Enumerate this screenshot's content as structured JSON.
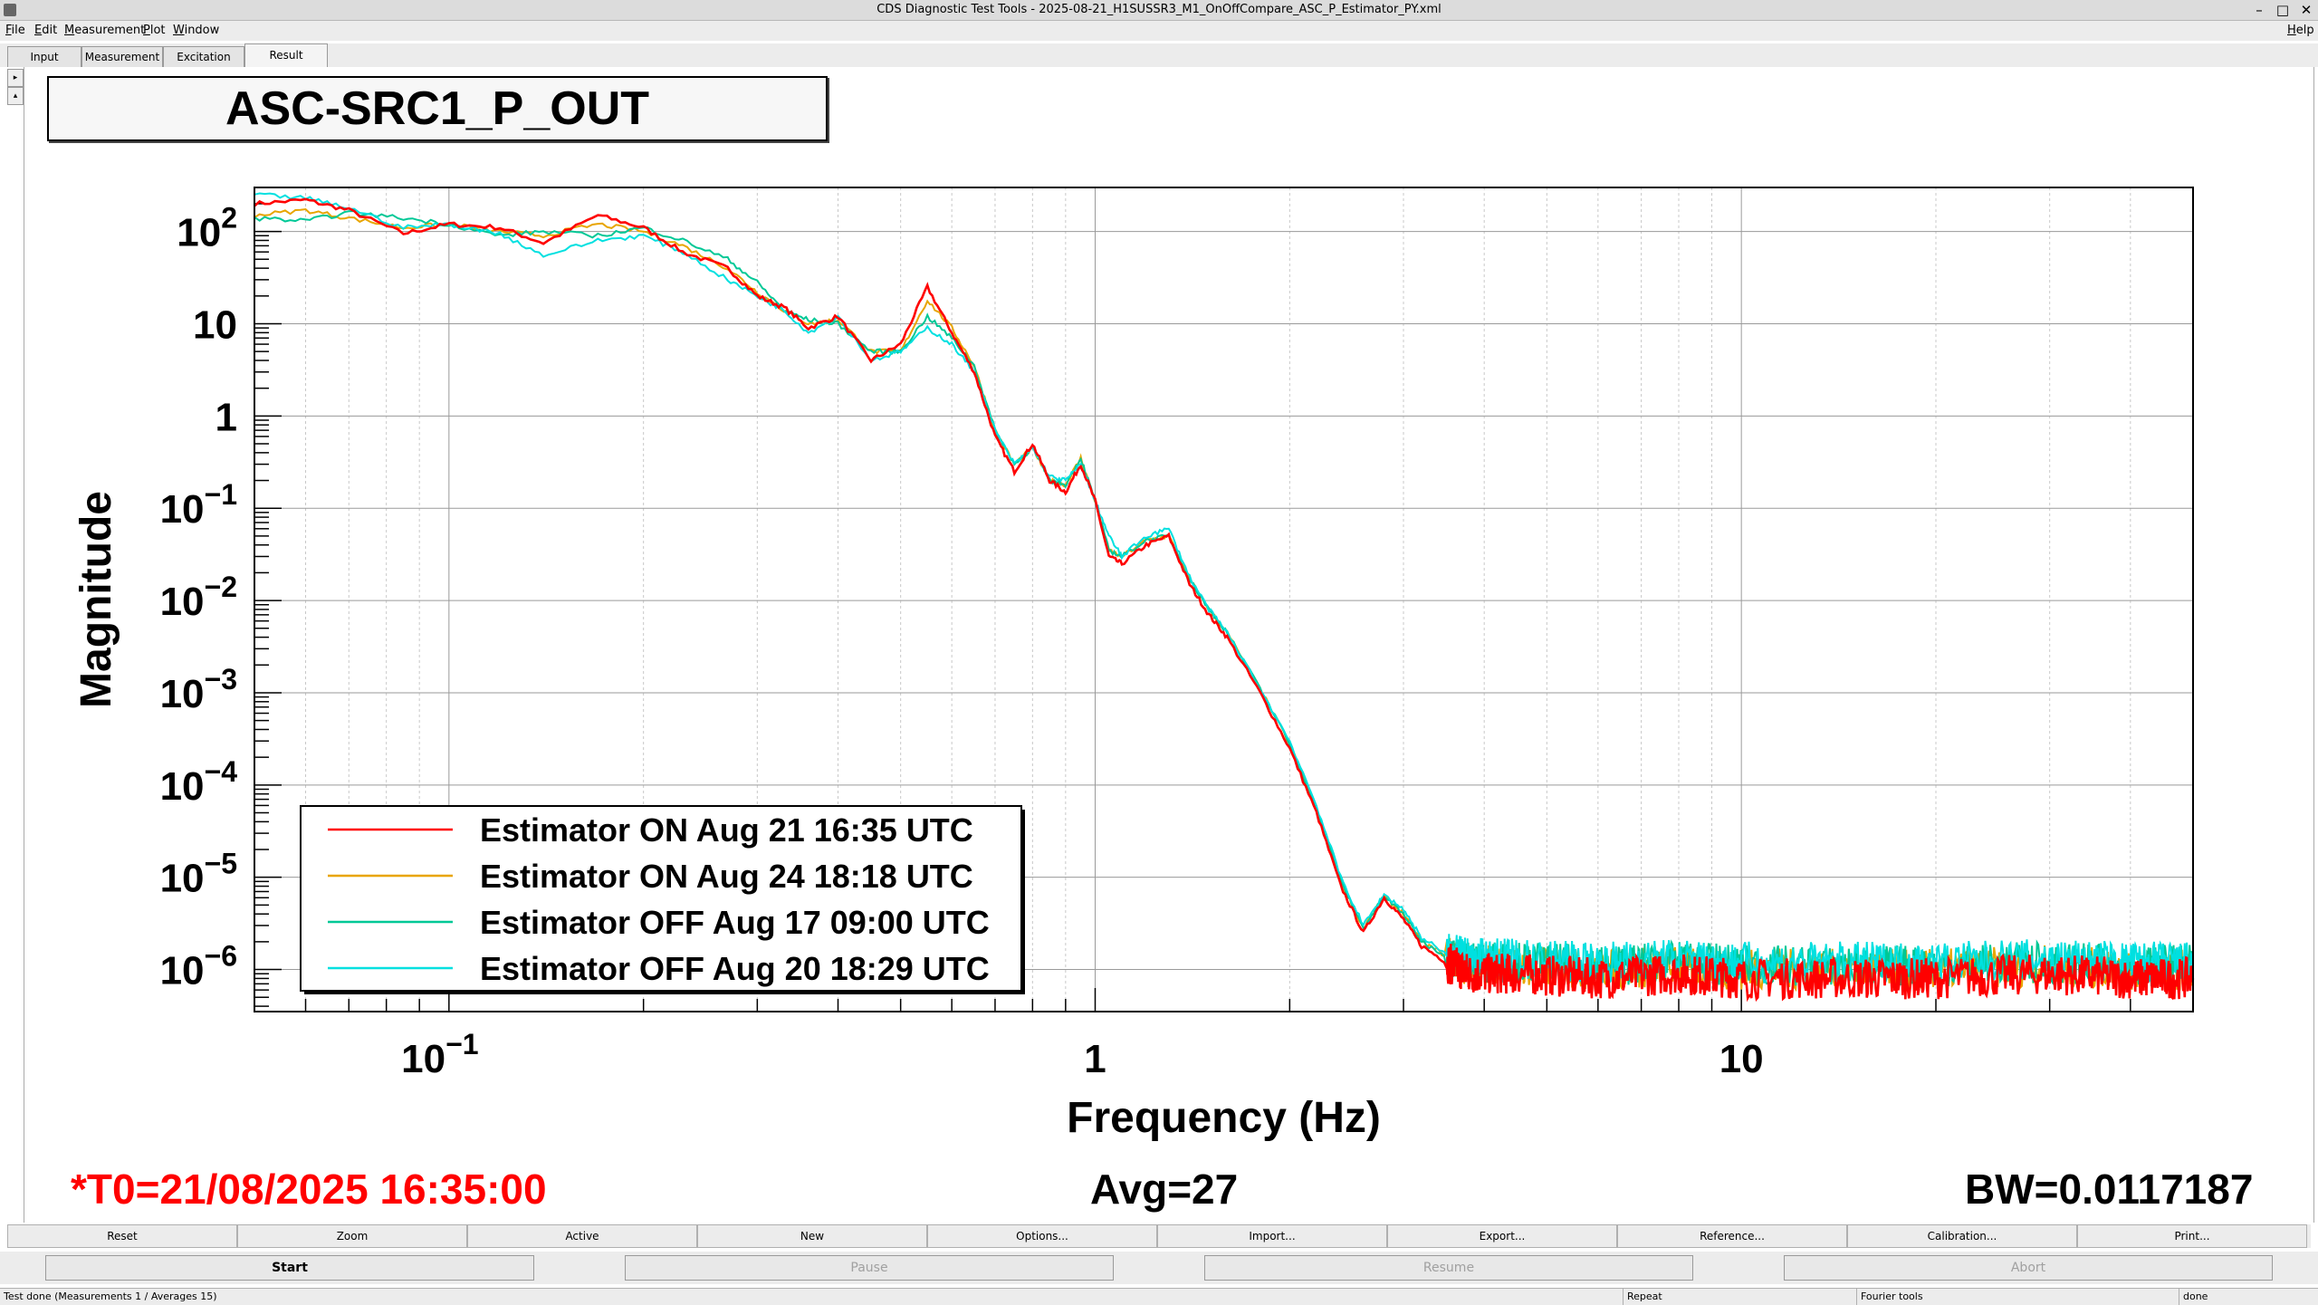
{
  "window": {
    "title": "CDS Diagnostic Test Tools - 2025-08-21_H1SUSSR3_M1_OnOffCompare_ASC_P_Estimator_PY.xml",
    "controls": [
      "–",
      "□",
      "✕"
    ]
  },
  "menu": [
    "File",
    "Edit",
    "Measurement",
    "Plot",
    "Window"
  ],
  "help": "Help",
  "tabs": [
    "Input",
    "Measurement",
    "Excitation",
    "Result"
  ],
  "active_tab": "Result",
  "colors": {
    "series1": "#ff0000",
    "series2": "#e8a500",
    "series3": "#00c896",
    "series4": "#00e0e0"
  },
  "plot": {
    "title": "ASC-SRC1_P_OUT",
    "t0": "*T0=21/08/2025 16:35:00",
    "avg": "Avg=27",
    "bw": "BW=0.0117187"
  },
  "chart_data": {
    "type": "line",
    "title": "ASC-SRC1_P_OUT",
    "xlabel": "Frequency (Hz)",
    "ylabel": "Magnitude",
    "xscale": "log",
    "yscale": "log",
    "xlim": [
      0.05,
      50
    ],
    "ylim": [
      3.5e-07,
      300
    ],
    "grid": true,
    "legend_position": "bottom-left",
    "x_tick_labels": [
      {
        "v": 0.1,
        "base": "10",
        "exp": "−1"
      },
      {
        "v": 1,
        "base": "1",
        "exp": ""
      },
      {
        "v": 10,
        "base": "10",
        "exp": ""
      }
    ],
    "y_tick_labels": [
      {
        "v": 100,
        "base": "10",
        "exp": "2"
      },
      {
        "v": 10,
        "base": "10",
        "exp": ""
      },
      {
        "v": 1,
        "base": "1",
        "exp": ""
      },
      {
        "v": 0.1,
        "base": "10",
        "exp": "−1"
      },
      {
        "v": 0.01,
        "base": "10",
        "exp": "−2"
      },
      {
        "v": 0.001,
        "base": "10",
        "exp": "−3"
      },
      {
        "v": 0.0001,
        "base": "10",
        "exp": "−4"
      },
      {
        "v": 1e-05,
        "base": "10",
        "exp": "−5"
      },
      {
        "v": 1e-06,
        "base": "10",
        "exp": "−6"
      }
    ],
    "series": [
      {
        "name": "Estimator ON Aug 21 16:35 UTC",
        "color": "#ff0000",
        "x": [
          0.05,
          0.06,
          0.07,
          0.085,
          0.1,
          0.12,
          0.14,
          0.17,
          0.2,
          0.23,
          0.27,
          0.3,
          0.33,
          0.36,
          0.4,
          0.45,
          0.5,
          0.55,
          0.6,
          0.65,
          0.7,
          0.75,
          0.8,
          0.85,
          0.9,
          0.95,
          1.0,
          1.05,
          1.1,
          1.2,
          1.3,
          1.4,
          1.5,
          1.6,
          1.8,
          2.0,
          2.2,
          2.4,
          2.6,
          2.8,
          3.0,
          3.2,
          3.5,
          3.8,
          4.5,
          6,
          8,
          10,
          15,
          20,
          30,
          40,
          50
        ],
        "y": [
          200,
          220,
          170,
          95,
          120,
          110,
          75,
          150,
          110,
          60,
          40,
          20,
          15,
          9,
          12,
          4,
          6,
          25,
          8,
          3,
          0.6,
          0.25,
          0.5,
          0.2,
          0.15,
          0.3,
          0.12,
          0.03,
          0.025,
          0.04,
          0.05,
          0.015,
          0.007,
          0.004,
          0.001,
          0.00025,
          5e-05,
          8e-06,
          2.5e-06,
          6e-06,
          3.5e-06,
          1.8e-06,
          1.2e-06,
          9e-07,
          9e-07,
          8e-07,
          9e-07,
          8e-07,
          8e-07,
          8e-07,
          9e-07,
          8e-07,
          8e-07
        ]
      },
      {
        "name": "Estimator ON Aug 24 18:18 UTC",
        "color": "#e8a500",
        "x": [
          0.05,
          0.06,
          0.07,
          0.085,
          0.1,
          0.12,
          0.14,
          0.17,
          0.2,
          0.23,
          0.27,
          0.3,
          0.33,
          0.36,
          0.4,
          0.45,
          0.5,
          0.55,
          0.6,
          0.65,
          0.7,
          0.75,
          0.8,
          0.85,
          0.9,
          0.95,
          1.0,
          1.05,
          1.1,
          1.2,
          1.3,
          1.4,
          1.5,
          1.6,
          1.8,
          2.0,
          2.2,
          2.4,
          2.6,
          2.8,
          3.0,
          3.2,
          3.5,
          3.8,
          4.5,
          6,
          8,
          10,
          15,
          20,
          30,
          40,
          50
        ],
        "y": [
          150,
          170,
          140,
          110,
          120,
          100,
          90,
          120,
          100,
          70,
          40,
          22,
          14,
          10,
          11,
          5,
          5,
          18,
          9,
          3.5,
          0.7,
          0.3,
          0.45,
          0.2,
          0.18,
          0.35,
          0.12,
          0.035,
          0.03,
          0.045,
          0.05,
          0.017,
          0.008,
          0.0045,
          0.0011,
          0.00028,
          5.5e-05,
          9e-06,
          2.8e-06,
          6.2e-06,
          4e-06,
          2e-06,
          1.4e-06,
          1.1e-06,
          1.1e-06,
          1e-06,
          1.1e-06,
          1e-06,
          1e-06,
          1e-06,
          1.1e-06,
          1e-06,
          1e-06
        ]
      },
      {
        "name": "Estimator OFF Aug 17 09:00 UTC",
        "color": "#00c896",
        "x": [
          0.05,
          0.06,
          0.07,
          0.085,
          0.1,
          0.12,
          0.14,
          0.17,
          0.2,
          0.23,
          0.27,
          0.3,
          0.33,
          0.36,
          0.4,
          0.45,
          0.5,
          0.55,
          0.6,
          0.65,
          0.7,
          0.75,
          0.8,
          0.85,
          0.9,
          0.95,
          1.0,
          1.05,
          1.1,
          1.2,
          1.3,
          1.4,
          1.5,
          1.6,
          1.8,
          2.0,
          2.2,
          2.4,
          2.6,
          2.8,
          3.0,
          3.2,
          3.5,
          3.8,
          4.5,
          6,
          8,
          10,
          15,
          20,
          30,
          40,
          50
        ],
        "y": [
          140,
          130,
          160,
          140,
          120,
          90,
          100,
          90,
          110,
          80,
          50,
          28,
          14,
          11,
          10,
          5,
          5,
          12,
          7,
          3.5,
          0.7,
          0.3,
          0.45,
          0.2,
          0.18,
          0.35,
          0.12,
          0.035,
          0.03,
          0.045,
          0.05,
          0.017,
          0.008,
          0.0045,
          0.0011,
          0.00028,
          5.5e-05,
          9e-06,
          2.8e-06,
          6.2e-06,
          4e-06,
          2e-06,
          1.4e-06,
          1.2e-06,
          1.2e-06,
          1.1e-06,
          1.2e-06,
          1.1e-06,
          1.1e-06,
          1.1e-06,
          1.2e-06,
          1.1e-06,
          1.1e-06
        ]
      },
      {
        "name": "Estimator OFF Aug 20 18:29 UTC",
        "color": "#00e0e0",
        "x": [
          0.05,
          0.06,
          0.07,
          0.085,
          0.1,
          0.12,
          0.14,
          0.17,
          0.2,
          0.23,
          0.27,
          0.3,
          0.33,
          0.36,
          0.4,
          0.45,
          0.5,
          0.55,
          0.6,
          0.65,
          0.7,
          0.75,
          0.8,
          0.85,
          0.9,
          0.95,
          1.0,
          1.05,
          1.1,
          1.2,
          1.3,
          1.4,
          1.5,
          1.6,
          1.8,
          2.0,
          2.2,
          2.4,
          2.6,
          2.8,
          3.0,
          3.2,
          3.5,
          3.8,
          4.5,
          6,
          8,
          10,
          15,
          20,
          30,
          40,
          50
        ],
        "y": [
          250,
          230,
          180,
          110,
          120,
          95,
          55,
          80,
          90,
          60,
          30,
          20,
          14,
          8,
          12,
          4,
          5,
          9,
          6,
          3,
          0.7,
          0.3,
          0.45,
          0.22,
          0.2,
          0.3,
          0.12,
          0.05,
          0.03,
          0.05,
          0.06,
          0.018,
          0.008,
          0.0045,
          0.0011,
          0.0003,
          6e-05,
          1e-05,
          3e-06,
          6.5e-06,
          4.5e-06,
          2.2e-06,
          1.5e-06,
          1.3e-06,
          1.3e-06,
          1.2e-06,
          1.3e-06,
          1.2e-06,
          1.2e-06,
          1.2e-06,
          1.3e-06,
          1.2e-06,
          1.2e-06
        ]
      }
    ]
  },
  "buttons_row1": [
    "Reset",
    "Zoom",
    "Active",
    "New",
    "Options...",
    "Import...",
    "Export...",
    "Reference...",
    "Calibration...",
    "Print..."
  ],
  "buttons_row2": [
    {
      "label": "Start",
      "enabled": true
    },
    {
      "label": "Pause",
      "enabled": false
    },
    {
      "label": "Resume",
      "enabled": false
    },
    {
      "label": "Abort",
      "enabled": false
    }
  ],
  "status": {
    "message": "Test done (Measurements 1 / Averages 15)",
    "mode": "Repeat",
    "tool": "Fourier tools",
    "state": "done"
  }
}
